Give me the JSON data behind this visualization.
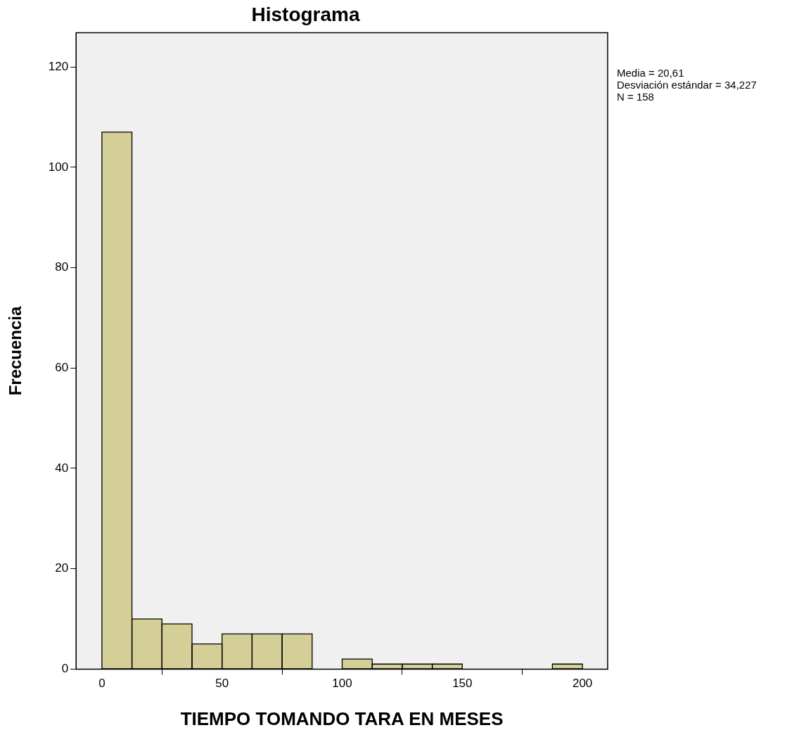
{
  "chart_data": {
    "type": "histogram",
    "title": "Histograma",
    "xlabel": "TIEMPO TOMANDO TARA EN MESES",
    "ylabel": "Frecuencia",
    "bins": [
      0,
      12.5,
      25,
      37.5,
      50,
      62.5,
      75,
      87.5,
      100,
      112.5,
      125,
      137.5,
      150,
      162.5,
      175,
      187.5,
      200
    ],
    "values": [
      107,
      10,
      9,
      5,
      7,
      7,
      7,
      0,
      2,
      1,
      1,
      1,
      0,
      0,
      0,
      1
    ],
    "color": "#d4cf97",
    "xlim": [
      -10.75,
      210.5
    ],
    "xticks": [
      0,
      50,
      100,
      150,
      200
    ],
    "ylim": [
      0,
      126.8
    ],
    "yticks": [
      0,
      20,
      40,
      60,
      80,
      100,
      120
    ],
    "grid": false,
    "legend": false,
    "annotations": [
      "Media = 20,61",
      "Desviación estándar = 34,227",
      "N = 158"
    ]
  }
}
